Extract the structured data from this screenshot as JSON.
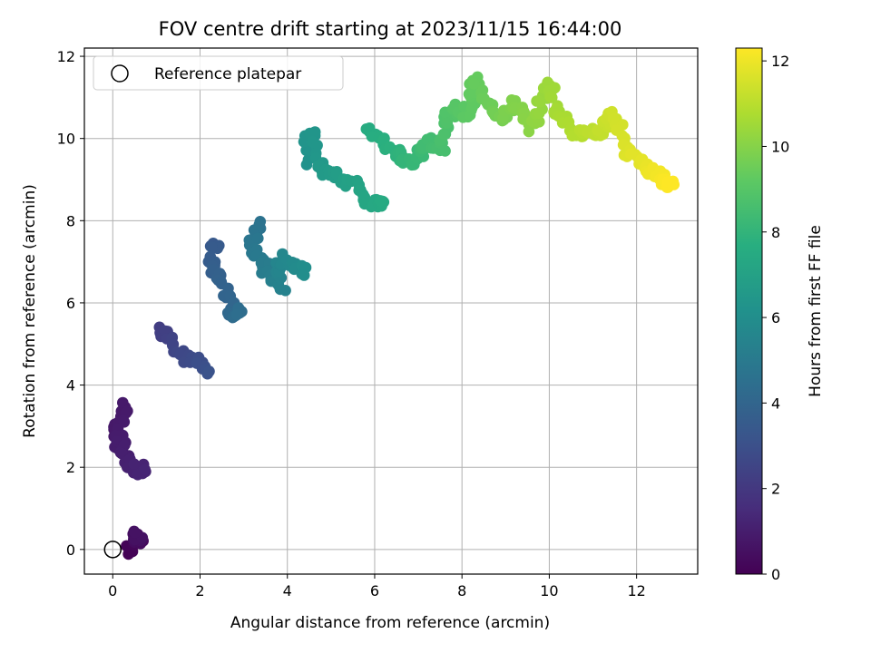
{
  "chart_data": {
    "type": "scatter",
    "title": "FOV centre drift starting at 2023/11/15 16:44:00",
    "xlabel": "Angular distance from reference (arcmin)",
    "ylabel": "Rotation from reference (arcmin)",
    "xlim": [
      -0.65,
      13.4
    ],
    "ylim": [
      -0.6,
      12.2
    ],
    "x_ticks": [
      0,
      2,
      4,
      6,
      8,
      10,
      12
    ],
    "y_ticks": [
      0,
      2,
      4,
      6,
      8,
      10,
      12
    ],
    "grid": true,
    "legend": {
      "placement": "top-left",
      "entries": [
        {
          "label": "Reference platepar",
          "marker": "hollow-circle"
        }
      ]
    },
    "reference": {
      "x": 0,
      "y": 0
    },
    "colormap": "viridis",
    "colorbar": {
      "label": "Hours from first FF file",
      "range": [
        0,
        12.3
      ],
      "ticks": [
        0,
        2,
        4,
        6,
        8,
        10,
        12
      ]
    },
    "anchors": [
      [
        0.0,
        0.3,
        0.0
      ],
      [
        0.3,
        0.6,
        0.2
      ],
      [
        0.45,
        0.5,
        0.3
      ],
      [
        0.6,
        0.6,
        0.4
      ],
      [
        0.8,
        0.0,
        2.8
      ],
      [
        0.85,
        0.25,
        3.5
      ],
      [
        0.95,
        0.15,
        2.6
      ],
      [
        1.05,
        0.3,
        2.3
      ],
      [
        1.15,
        0.5,
        2.0
      ],
      [
        1.25,
        0.75,
        1.9
      ],
      [
        2.2,
        1.1,
        5.45
      ],
      [
        2.5,
        1.4,
        4.95
      ],
      [
        2.8,
        1.8,
        4.6
      ],
      [
        3.1,
        2.25,
        4.35
      ],
      [
        3.4,
        2.35,
        7.5
      ],
      [
        3.6,
        2.3,
        7.0
      ],
      [
        3.8,
        2.45,
        6.6
      ],
      [
        4.0,
        2.7,
        6.0
      ],
      [
        4.2,
        2.75,
        5.6
      ],
      [
        4.4,
        2.95,
        5.8
      ],
      [
        4.6,
        3.3,
        8.0
      ],
      [
        4.8,
        3.2,
        7.5
      ],
      [
        5.0,
        3.4,
        7.0
      ],
      [
        5.2,
        3.6,
        6.6
      ],
      [
        5.4,
        3.9,
        6.4
      ],
      [
        5.6,
        3.8,
        7.1
      ],
      [
        5.8,
        4.2,
        6.9
      ],
      [
        6.0,
        4.4,
        6.75
      ],
      [
        6.2,
        4.4,
        9.5
      ],
      [
        6.35,
        4.55,
        10.15
      ],
      [
        6.5,
        4.7,
        9.3
      ],
      [
        6.75,
        5.0,
        9.1
      ],
      [
        7.0,
        5.5,
        8.9
      ],
      [
        7.3,
        5.9,
        8.5
      ],
      [
        7.45,
        6.2,
        8.4
      ],
      [
        7.5,
        5.8,
        10.15
      ],
      [
        7.7,
        6.2,
        9.9
      ],
      [
        7.9,
        6.6,
        9.6
      ],
      [
        8.1,
        6.8,
        9.4
      ],
      [
        8.25,
        7.1,
        9.7
      ],
      [
        8.45,
        7.2,
        9.9
      ],
      [
        8.6,
        7.6,
        9.8
      ],
      [
        8.8,
        7.6,
        10.4
      ],
      [
        9.0,
        7.9,
        10.7
      ],
      [
        9.2,
        8.2,
        10.6
      ],
      [
        9.35,
        8.3,
        11.4
      ],
      [
        9.5,
        8.6,
        10.8
      ],
      [
        9.7,
        8.9,
        10.4
      ],
      [
        9.9,
        9.2,
        10.9
      ],
      [
        10.1,
        9.5,
        10.3
      ],
      [
        10.3,
        9.8,
        10.7
      ],
      [
        10.45,
        10.0,
        11.4
      ],
      [
        10.6,
        10.2,
        10.6
      ],
      [
        10.8,
        10.5,
        10.2
      ],
      [
        11.0,
        10.8,
        10.1
      ],
      [
        11.2,
        11.2,
        10.2
      ],
      [
        11.4,
        11.5,
        10.6
      ],
      [
        11.6,
        11.7,
        9.8
      ],
      [
        11.8,
        12.0,
        9.5
      ],
      [
        12.0,
        12.3,
        9.2
      ],
      [
        12.15,
        12.6,
        9.1
      ],
      [
        12.3,
        12.75,
        8.9
      ]
    ]
  }
}
